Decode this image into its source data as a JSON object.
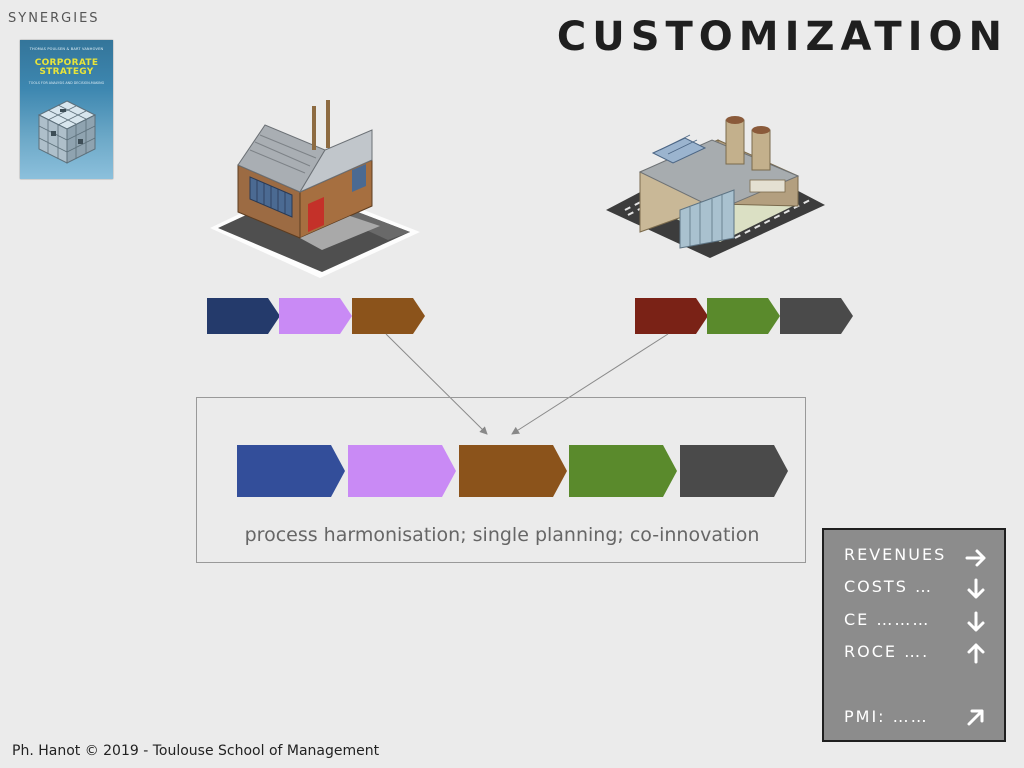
{
  "section_label": "SYNERGIES",
  "title": "CUSTOMIZATION",
  "book": {
    "authors": "THOMAS POULSEN & BART VANHOVEN",
    "title_line1": "CORPORATE",
    "title_line2": "STRATEGY",
    "subtitle": "TOOLS FOR ANALYSIS AND DECISION-MAKING"
  },
  "chains": {
    "left": [
      "#243a6b",
      "#c98af5",
      "#8b531b"
    ],
    "right": [
      "#7a2216",
      "#5a8a2c",
      "#4a4a4a"
    ],
    "merged": [
      "#334e9a",
      "#c98af5",
      "#8b531b",
      "#5a8a2c",
      "#4a4a4a"
    ]
  },
  "merged_caption": "process harmonisation;  single planning; co-innovation",
  "kpis": [
    {
      "label": "REVENUES",
      "arrow": "right"
    },
    {
      "label": "COSTS …",
      "arrow": "down"
    },
    {
      "label": "CE ………",
      "arrow": "down"
    },
    {
      "label": "ROCE ….",
      "arrow": "up"
    },
    {
      "label": "PMI: ……",
      "arrow": "up-right"
    }
  ],
  "footer": "Ph. Hanot © 2019  -  Toulouse School of Management"
}
